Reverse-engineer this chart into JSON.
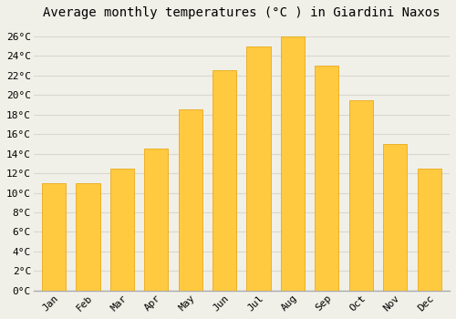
{
  "title": "Average monthly temperatures (°C ) in Giardini Naxos",
  "months": [
    "Jan",
    "Feb",
    "Mar",
    "Apr",
    "May",
    "Jun",
    "Jul",
    "Aug",
    "Sep",
    "Oct",
    "Nov",
    "Dec"
  ],
  "temperatures": [
    11,
    11,
    12.5,
    14.5,
    18.5,
    22.5,
    25,
    26,
    23,
    19.5,
    15,
    12.5
  ],
  "bar_color_top": "#FFB300",
  "bar_color_bottom": "#FFC940",
  "bar_edge_color": "#E8A000",
  "background_color": "#F0F0E8",
  "grid_color": "#D8D8D0",
  "ylim": [
    0,
    27
  ],
  "yticks": [
    0,
    2,
    4,
    6,
    8,
    10,
    12,
    14,
    16,
    18,
    20,
    22,
    24,
    26
  ],
  "title_fontsize": 10,
  "tick_fontsize": 8,
  "bar_width": 0.7
}
